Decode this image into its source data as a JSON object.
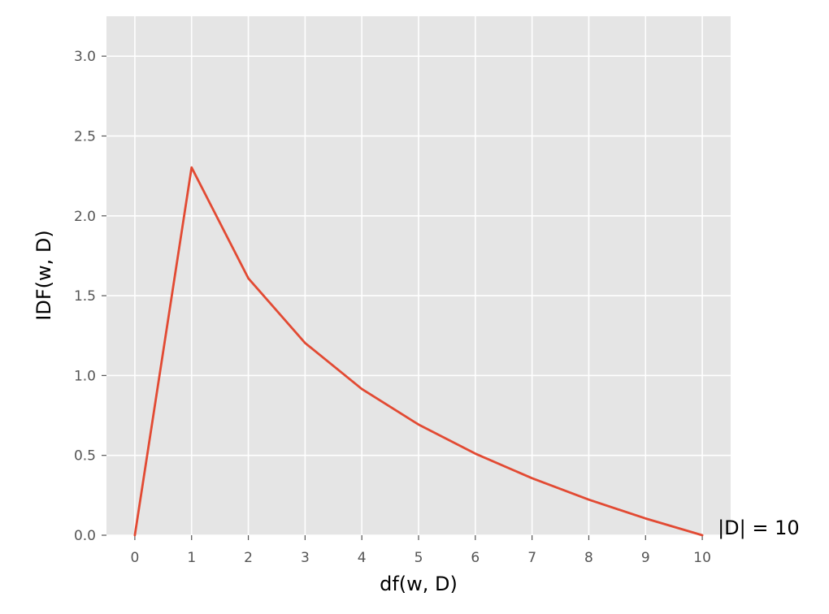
{
  "chart_data": {
    "type": "line",
    "xlabel": "df(w, D)",
    "ylabel": "IDF(w, D)",
    "x": [
      0,
      1,
      2,
      3,
      4,
      5,
      6,
      7,
      8,
      9,
      10
    ],
    "series": [
      {
        "values": [
          0.0,
          2.303,
          1.609,
          1.204,
          0.916,
          0.693,
          0.511,
          0.357,
          0.223,
          0.105,
          0.0
        ]
      }
    ],
    "xlim": [
      -0.5,
      10.5
    ],
    "ylim": [
      0.0,
      3.25
    ],
    "xticks": [
      0,
      1,
      2,
      3,
      4,
      5,
      6,
      7,
      8,
      9,
      10
    ],
    "yticks": [
      0.0,
      0.5,
      1.0,
      1.5,
      2.0,
      2.5,
      3.0
    ],
    "ytick_labels": [
      "0.0",
      "0.5",
      "1.0",
      "1.5",
      "2.0",
      "2.5",
      "3.0"
    ],
    "grid": true,
    "annotation": {
      "text": "|D| = 10",
      "x": 10,
      "y": 0.0
    },
    "colors": {
      "background": "#e5e5e5",
      "grid": "#ffffff",
      "line": "#e24a33",
      "tick": "#555555"
    }
  }
}
